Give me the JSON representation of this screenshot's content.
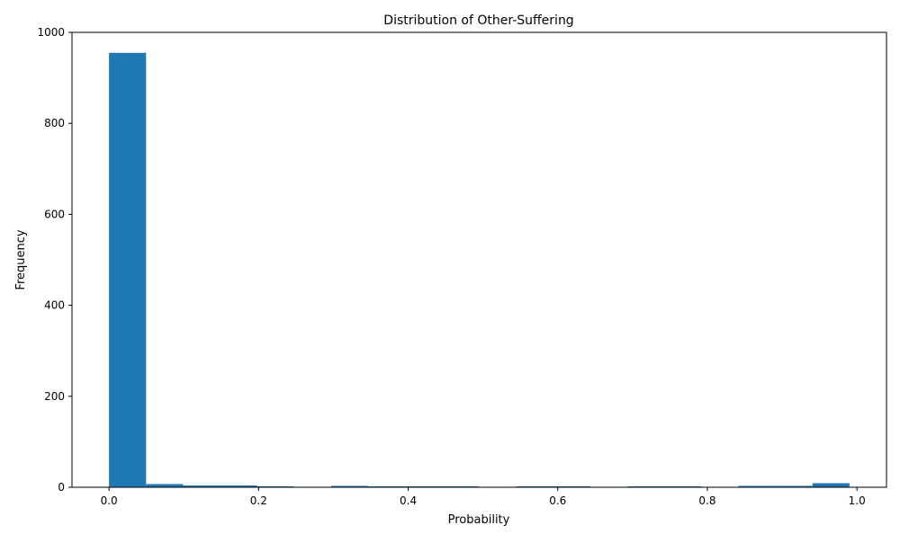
{
  "chart_data": {
    "type": "bar",
    "title": "Distribution of Other-Suffering",
    "xlabel": "Probability",
    "ylabel": "Frequency",
    "xlim": [
      -0.0495,
      1.0395
    ],
    "ylim": [
      0,
      1000
    ],
    "xticks": [
      0.0,
      0.2,
      0.4,
      0.6,
      0.8,
      1.0
    ],
    "xtick_labels": [
      "0.0",
      "0.2",
      "0.4",
      "0.6",
      "0.8",
      "1.0"
    ],
    "yticks": [
      0,
      200,
      400,
      600,
      800,
      1000
    ],
    "ytick_labels": [
      "0",
      "200",
      "400",
      "600",
      "800",
      "1000"
    ],
    "bin_edges": [
      0.0,
      0.0495,
      0.099,
      0.1485,
      0.198,
      0.2475,
      0.297,
      0.3465,
      0.396,
      0.4455,
      0.495,
      0.5445,
      0.594,
      0.6435,
      0.693,
      0.7425,
      0.792,
      0.8415,
      0.891,
      0.9405,
      0.99
    ],
    "values": [
      955,
      7,
      4,
      4,
      2,
      0,
      3,
      2,
      2,
      2,
      0,
      2,
      2,
      0,
      2,
      2,
      0,
      3,
      3,
      9
    ],
    "bar_color": "#1f77b4",
    "grid": false,
    "legend": "none"
  }
}
